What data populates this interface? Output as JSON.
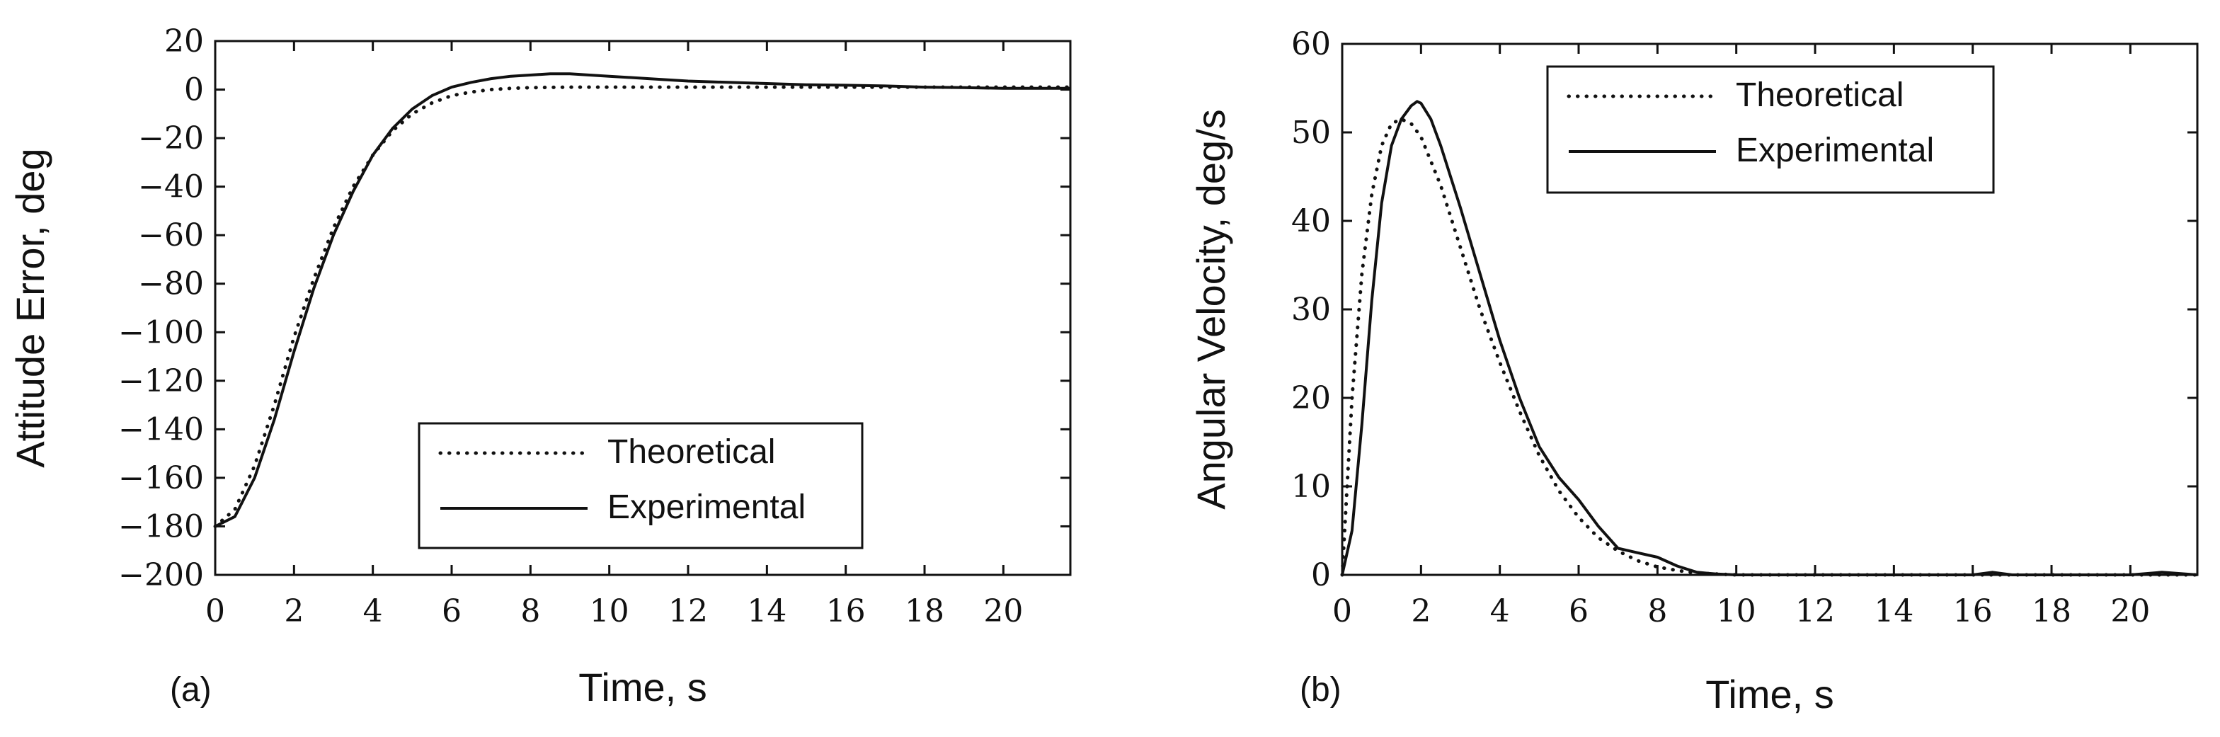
{
  "chart_data": [
    {
      "type": "line",
      "panel_label": "(a)",
      "xlabel": "Time, s",
      "ylabel": "Attitude Error, deg",
      "xlim": [
        0,
        21.7
      ],
      "ylim": [
        -200,
        20
      ],
      "xticks": [
        "0",
        "2",
        "4",
        "6",
        "8",
        "10",
        "12",
        "14",
        "16",
        "18",
        "20"
      ],
      "yticks": [
        "20",
        "0",
        "−20",
        "−40",
        "−60",
        "−80",
        "−100",
        "−120",
        "−140",
        "−160",
        "−180",
        "−200"
      ],
      "legend_position": "lower-right",
      "grid": false,
      "series": [
        {
          "name": "Theoretical",
          "style": "dotted",
          "x": [
            0,
            0.5,
            1.0,
            1.5,
            2.0,
            2.5,
            3.0,
            3.5,
            4.0,
            4.5,
            5.0,
            5.5,
            6.0,
            6.5,
            7.0,
            7.5,
            8.0,
            9.0,
            10.0,
            12.0,
            14.0,
            16.0,
            18.0,
            20.0,
            21.7
          ],
          "y": [
            -180,
            -173,
            -155,
            -130,
            -102,
            -78,
            -57,
            -40,
            -27,
            -17,
            -10,
            -5.5,
            -2.5,
            -1,
            0,
            0.5,
            0.8,
            1,
            1,
            1,
            1,
            1,
            1,
            1,
            1
          ]
        },
        {
          "name": "Experimental",
          "style": "solid",
          "x": [
            0,
            0.5,
            1.0,
            1.5,
            2.0,
            2.5,
            3.0,
            3.5,
            4.0,
            4.5,
            5.0,
            5.5,
            6.0,
            6.5,
            7.0,
            7.5,
            8.0,
            8.5,
            9.0,
            9.5,
            10.0,
            11.0,
            12.0,
            13.0,
            14.0,
            15.0,
            16.0,
            17.0,
            18.0,
            19.0,
            20.0,
            21.7
          ],
          "y": [
            -180,
            -176,
            -160,
            -136,
            -108,
            -82,
            -60,
            -42,
            -27,
            -16,
            -8,
            -2.5,
            1,
            3,
            4.5,
            5.5,
            6,
            6.5,
            6.5,
            6,
            5.5,
            4.5,
            3.5,
            3,
            2.5,
            2,
            1.8,
            1.5,
            1,
            0.8,
            0.5,
            0.5
          ]
        }
      ]
    },
    {
      "type": "line",
      "panel_label": "(b)",
      "xlabel": "Time, s",
      "ylabel": "Angular Velocity, deg/s",
      "xlim": [
        0,
        21.7
      ],
      "ylim": [
        0,
        60
      ],
      "xticks": [
        "0",
        "2",
        "4",
        "6",
        "8",
        "10",
        "12",
        "14",
        "16",
        "18",
        "20"
      ],
      "yticks": [
        "60",
        "50",
        "40",
        "30",
        "20",
        "10",
        "0"
      ],
      "legend_position": "top-right",
      "grid": false,
      "series": [
        {
          "name": "Theoretical",
          "style": "dotted",
          "x": [
            0,
            0.25,
            0.5,
            0.75,
            1.0,
            1.25,
            1.5,
            1.75,
            2.0,
            2.5,
            3.0,
            3.5,
            4.0,
            4.5,
            5.0,
            5.5,
            6.0,
            6.5,
            7.0,
            7.5,
            8.0,
            8.5,
            9.0,
            9.5,
            10.0,
            12.0,
            16.0,
            21.7
          ],
          "y": [
            0,
            20,
            34,
            43,
            48.5,
            51,
            51.5,
            51,
            49.5,
            44,
            37,
            30,
            24,
            18.5,
            13.5,
            9.5,
            6.5,
            4.2,
            2.7,
            1.6,
            0.9,
            0.5,
            0.2,
            0.1,
            0,
            0,
            0,
            0
          ]
        },
        {
          "name": "Experimental",
          "style": "solid",
          "x": [
            0,
            0.25,
            0.5,
            0.75,
            1.0,
            1.25,
            1.5,
            1.75,
            1.9,
            2.0,
            2.25,
            2.5,
            3.0,
            3.5,
            4.0,
            4.5,
            5.0,
            5.5,
            6.0,
            6.5,
            7.0,
            7.5,
            8.0,
            8.5,
            9.0,
            9.5,
            10.0,
            12.0,
            16.0,
            16.5,
            17.0,
            20.0,
            20.8,
            21.7
          ],
          "y": [
            0,
            5,
            17,
            31,
            42,
            48.5,
            51.5,
            53,
            53.5,
            53.3,
            51.5,
            48.5,
            41.5,
            34,
            26.5,
            20,
            14.5,
            11,
            8.5,
            5.5,
            3,
            2.5,
            2,
            1,
            0.3,
            0.1,
            0,
            0,
            0,
            0.3,
            0,
            0,
            0.3,
            0
          ]
        }
      ]
    }
  ]
}
